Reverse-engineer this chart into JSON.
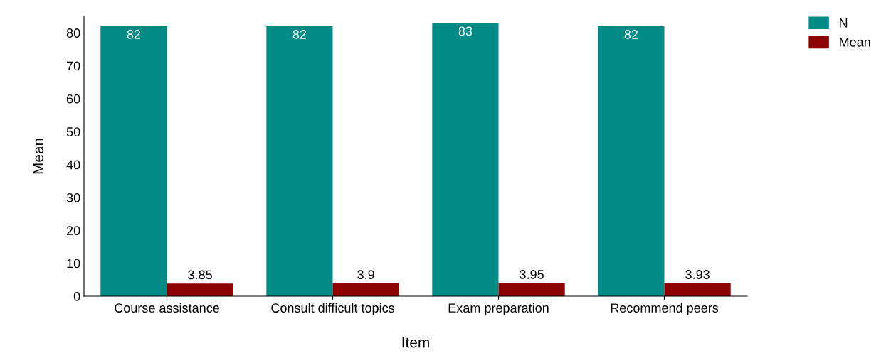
{
  "chart_data": {
    "type": "bar",
    "xlabel": "Item",
    "ylabel": "Mean",
    "categories": [
      "Course assistance",
      "Consult difficult topics",
      "Exam preparation",
      "Recommend peers"
    ],
    "series": [
      {
        "name": "N",
        "color": "#008b87",
        "values": [
          82,
          82,
          83,
          82
        ]
      },
      {
        "name": "Mean",
        "color": "#8b0000",
        "values": [
          3.85,
          3.9,
          3.95,
          3.93
        ]
      }
    ],
    "ylim": [
      0,
      85
    ],
    "yticks": [
      0,
      10,
      20,
      30,
      40,
      50,
      60,
      70,
      80
    ],
    "grid": false,
    "legend": "top right",
    "data_labels": true
  }
}
